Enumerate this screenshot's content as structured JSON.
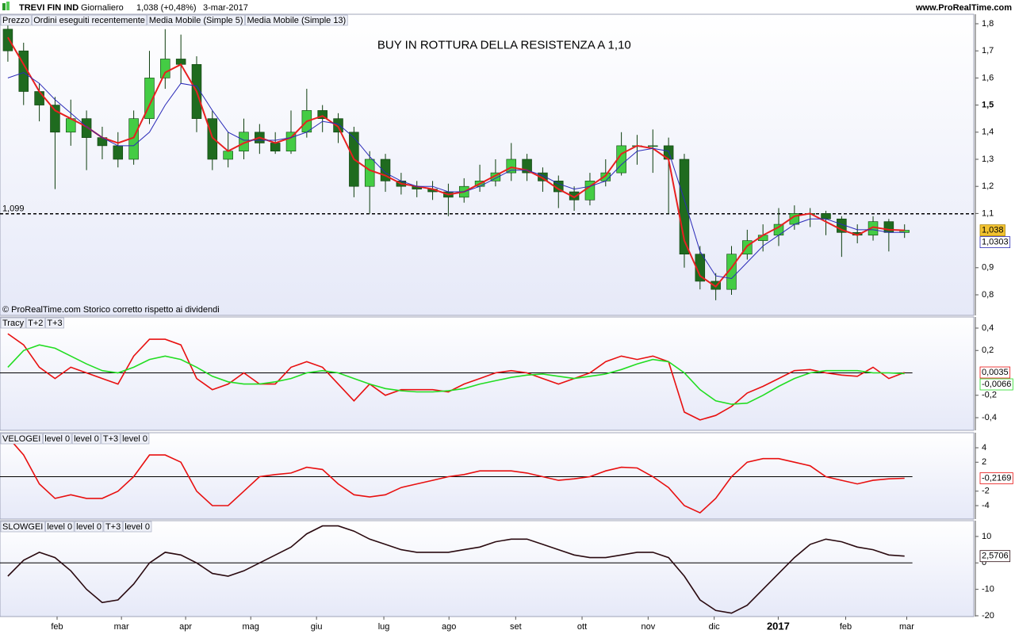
{
  "header": {
    "symbol": "TREVI FIN IND",
    "period": "Giornaliero",
    "quote": "1,038 (+0,48%)",
    "date": "3-mar-2017",
    "site": "www.ProRealTime.com"
  },
  "chart_data": [
    {
      "type": "candlestick",
      "legend": [
        "Prezzo",
        "Ordini eseguiti recentemente"
      ],
      "annotation": "BUY IN ROTTURA DELLA RESISTENZA A 1,10",
      "note": "© ProRealTime.com  Storico corretto rispetto ai dividendi",
      "xlim": [
        -0.5,
        61.4
      ],
      "ylim": [
        0.724,
        1.835
      ],
      "yticks": [
        {
          "value": 0.8,
          "label": "0,8"
        },
        {
          "value": 0.9,
          "label": "0,9"
        },
        {
          "value": 1.1,
          "label": "1,1"
        },
        {
          "value": 1.2,
          "label": "1,2"
        },
        {
          "value": 1.3,
          "label": "1,3"
        },
        {
          "value": 1.4,
          "label": "1,4"
        },
        {
          "value": 1.5,
          "label": "1,5",
          "bold": true
        },
        {
          "value": 1.6,
          "label": "1,6"
        },
        {
          "value": 1.7,
          "label": "1,7"
        },
        {
          "value": 1.8,
          "label": "1,8"
        }
      ],
      "resistance": {
        "value": 1.099,
        "label": "1,099"
      },
      "up_color": "#44cc44",
      "down_color": "#1f6b1f",
      "open": [
        1.78,
        1.7,
        1.55,
        1.5,
        1.4,
        1.45,
        1.38,
        1.35,
        1.3,
        1.45,
        1.6,
        1.67,
        1.65,
        1.45,
        1.3,
        1.33,
        1.4,
        1.36,
        1.33,
        1.4,
        1.48,
        1.45,
        1.4,
        1.2,
        1.3,
        1.22,
        1.2,
        1.19,
        1.18,
        1.16,
        1.2,
        1.22,
        1.25,
        1.3,
        1.25,
        1.22,
        1.18,
        1.15,
        1.22,
        1.25,
        1.35,
        1.35,
        1.35,
        1.3,
        0.95,
        0.85,
        0.82,
        0.95,
        1.0,
        1.02,
        1.06,
        1.1,
        1.1,
        1.08,
        1.03,
        1.02,
        1.07,
        1.03
      ],
      "high": [
        1.82,
        1.73,
        1.58,
        1.53,
        1.52,
        1.48,
        1.42,
        1.4,
        1.48,
        1.7,
        1.78,
        1.76,
        1.68,
        1.48,
        1.4,
        1.45,
        1.43,
        1.4,
        1.48,
        1.56,
        1.5,
        1.47,
        1.42,
        1.33,
        1.32,
        1.25,
        1.22,
        1.22,
        1.21,
        1.23,
        1.28,
        1.3,
        1.36,
        1.32,
        1.27,
        1.24,
        1.2,
        1.25,
        1.3,
        1.4,
        1.39,
        1.41,
        1.38,
        1.32,
        0.98,
        0.88,
        0.98,
        1.04,
        1.06,
        1.12,
        1.13,
        1.12,
        1.11,
        1.09,
        1.06,
        1.09,
        1.08,
        1.06
      ],
      "low": [
        1.66,
        1.5,
        1.44,
        1.19,
        1.35,
        1.26,
        1.3,
        1.27,
        1.28,
        1.43,
        1.56,
        1.58,
        1.4,
        1.26,
        1.27,
        1.3,
        1.32,
        1.32,
        1.32,
        1.38,
        1.4,
        1.36,
        1.16,
        1.1,
        1.18,
        1.17,
        1.16,
        1.15,
        1.09,
        1.14,
        1.18,
        1.2,
        1.22,
        1.22,
        1.18,
        1.12,
        1.11,
        1.13,
        1.2,
        1.24,
        1.28,
        1.25,
        1.1,
        0.9,
        0.82,
        0.78,
        0.8,
        0.93,
        0.96,
        0.98,
        1.04,
        1.05,
        1.02,
        0.94,
        0.99,
        1.0,
        0.96,
        1.01
      ],
      "close": [
        1.7,
        1.55,
        1.5,
        1.4,
        1.45,
        1.38,
        1.35,
        1.3,
        1.45,
        1.6,
        1.67,
        1.65,
        1.45,
        1.3,
        1.33,
        1.4,
        1.36,
        1.33,
        1.4,
        1.48,
        1.45,
        1.4,
        1.2,
        1.3,
        1.22,
        1.2,
        1.19,
        1.18,
        1.16,
        1.2,
        1.22,
        1.25,
        1.3,
        1.25,
        1.22,
        1.18,
        1.15,
        1.22,
        1.25,
        1.35,
        1.35,
        1.35,
        1.3,
        0.95,
        0.85,
        0.82,
        0.95,
        1.0,
        1.02,
        1.06,
        1.1,
        1.1,
        1.08,
        1.03,
        1.02,
        1.07,
        1.03,
        1.038
      ],
      "close_label": "1,038",
      "close_label_color": "#f2c230",
      "series": [
        {
          "name": "Media Mobile (Simple 5)",
          "color": "#e82020",
          "values": [
            1.75,
            1.65,
            1.55,
            1.48,
            1.45,
            1.42,
            1.38,
            1.36,
            1.38,
            1.5,
            1.62,
            1.65,
            1.55,
            1.38,
            1.33,
            1.36,
            1.38,
            1.36,
            1.38,
            1.44,
            1.46,
            1.42,
            1.3,
            1.26,
            1.24,
            1.21,
            1.2,
            1.19,
            1.17,
            1.18,
            1.21,
            1.24,
            1.27,
            1.26,
            1.23,
            1.19,
            1.16,
            1.2,
            1.24,
            1.32,
            1.35,
            1.34,
            1.3,
            1.0,
            0.87,
            0.83,
            0.9,
            0.98,
            1.02,
            1.05,
            1.09,
            1.1,
            1.07,
            1.04,
            1.02,
            1.05,
            1.04,
            1.038
          ]
        },
        {
          "name": "Media Mobile (Simple 13)",
          "color": "#2a2ab8",
          "last_label": "1,0303",
          "values": [
            1.6,
            1.62,
            1.58,
            1.52,
            1.47,
            1.42,
            1.38,
            1.35,
            1.35,
            1.4,
            1.5,
            1.58,
            1.57,
            1.48,
            1.4,
            1.37,
            1.37,
            1.37,
            1.38,
            1.4,
            1.44,
            1.43,
            1.38,
            1.31,
            1.25,
            1.22,
            1.2,
            1.2,
            1.18,
            1.18,
            1.2,
            1.23,
            1.26,
            1.26,
            1.24,
            1.21,
            1.19,
            1.2,
            1.22,
            1.28,
            1.33,
            1.34,
            1.33,
            1.15,
            0.96,
            0.87,
            0.86,
            0.92,
            0.98,
            1.02,
            1.06,
            1.08,
            1.08,
            1.06,
            1.04,
            1.04,
            1.03,
            1.0303
          ]
        }
      ]
    },
    {
      "type": "line",
      "xlim": [
        -0.5,
        61.4
      ],
      "ylim": [
        -0.513,
        0.499
      ],
      "yticks": [
        {
          "value": -0.4,
          "label": "-0,4"
        },
        {
          "value": -0.2,
          "label": "-0,2"
        },
        {
          "value": 0.2,
          "label": "0,2"
        },
        {
          "value": 0.4,
          "label": "0,4"
        }
      ],
      "level": 0,
      "legend_extra": [
        "T+3"
      ],
      "series": [
        {
          "name": "Tracy",
          "color": "#e81010",
          "last_label": "0,0035",
          "values": [
            0.35,
            0.25,
            0.05,
            -0.05,
            0.05,
            0.0,
            -0.05,
            -0.1,
            0.15,
            0.3,
            0.3,
            0.25,
            -0.05,
            -0.15,
            -0.1,
            0.0,
            -0.1,
            -0.1,
            0.05,
            0.1,
            0.05,
            -0.1,
            -0.25,
            -0.1,
            -0.2,
            -0.15,
            -0.15,
            -0.15,
            -0.17,
            -0.1,
            -0.05,
            0.0,
            0.02,
            0.0,
            -0.05,
            -0.1,
            -0.05,
            0.0,
            0.1,
            0.15,
            0.12,
            0.15,
            0.1,
            -0.35,
            -0.42,
            -0.38,
            -0.3,
            -0.18,
            -0.12,
            -0.05,
            0.02,
            0.03,
            0.0,
            -0.02,
            -0.03,
            0.05,
            -0.05,
            0.0035
          ]
        },
        {
          "name": "T+2",
          "color": "#22dd22",
          "last_label": "-0,0066",
          "values": [
            0.05,
            0.2,
            0.25,
            0.22,
            0.15,
            0.08,
            0.02,
            0.0,
            0.05,
            0.12,
            0.15,
            0.12,
            0.05,
            -0.03,
            -0.08,
            -0.1,
            -0.1,
            -0.08,
            -0.05,
            0.0,
            0.02,
            0.0,
            -0.05,
            -0.1,
            -0.14,
            -0.16,
            -0.17,
            -0.17,
            -0.16,
            -0.14,
            -0.1,
            -0.07,
            -0.04,
            -0.02,
            -0.01,
            -0.03,
            -0.05,
            -0.03,
            -0.01,
            0.03,
            0.08,
            0.12,
            0.1,
            0.0,
            -0.15,
            -0.25,
            -0.28,
            -0.27,
            -0.2,
            -0.12,
            -0.05,
            0.0,
            0.02,
            0.02,
            0.02,
            0.0,
            0.0,
            -0.0066
          ]
        }
      ]
    },
    {
      "type": "line",
      "xlim": [
        -0.5,
        61.4
      ],
      "ylim": [
        -5.86,
        6.08
      ],
      "yticks": [
        -4,
        -2,
        2,
        4
      ],
      "level": 0,
      "legend_extra": [
        "level 0",
        "level 0",
        "T+3",
        "level 0"
      ],
      "series": [
        {
          "name": "VELOGEI",
          "color": "#e81010",
          "last_label": "-0,2169",
          "values": [
            5.5,
            3,
            -1,
            -3,
            -2.5,
            -3,
            -3,
            -2,
            0,
            3,
            3,
            2,
            -2,
            -4,
            -4,
            -2,
            0,
            0.3,
            0.5,
            1.3,
            1,
            -1,
            -2.5,
            -2.8,
            -2.5,
            -1.5,
            -1,
            -0.5,
            0,
            0.3,
            0.8,
            0.8,
            0.8,
            0.5,
            0,
            -0.5,
            -0.3,
            0,
            0.8,
            1.3,
            1.2,
            0,
            -1.5,
            -4,
            -5,
            -3,
            0,
            2,
            2.5,
            2.5,
            2,
            1.5,
            0,
            -0.5,
            -1,
            -0.5,
            -0.3,
            -0.2169
          ]
        }
      ]
    },
    {
      "type": "line",
      "xlim": [
        -0.5,
        61.4
      ],
      "ylim": [
        -20.3,
        15.97
      ],
      "yticks": [
        -20,
        -10,
        0,
        10
      ],
      "level": 0,
      "legend_extra": [
        "level 0",
        "level 0",
        "T+3",
        "level 0"
      ],
      "xticks": [
        {
          "value": 3.13,
          "label": "feb"
        },
        {
          "value": 7.22,
          "label": "mar"
        },
        {
          "value": 11.3,
          "label": "apr"
        },
        {
          "value": 15.44,
          "label": "mag"
        },
        {
          "value": 19.62,
          "label": "giu"
        },
        {
          "value": 23.9,
          "label": "lug"
        },
        {
          "value": 28.04,
          "label": "ago"
        },
        {
          "value": 32.28,
          "label": "set"
        },
        {
          "value": 36.5,
          "label": "ott"
        },
        {
          "value": 40.7,
          "label": "nov"
        },
        {
          "value": 44.9,
          "label": "dic"
        },
        {
          "value": 48.97,
          "label": "2017",
          "bold": true
        },
        {
          "value": 53.26,
          "label": "feb"
        },
        {
          "value": 57.14,
          "label": "mar"
        }
      ],
      "series": [
        {
          "name": "SLOWGEI",
          "color": "#2a0a10",
          "last_label": "2,5706",
          "values": [
            -5,
            1,
            4,
            2,
            -3,
            -10,
            -15,
            -14,
            -8,
            0,
            4,
            3,
            0,
            -4,
            -5,
            -3,
            0,
            3,
            6,
            11,
            14,
            14,
            12,
            9,
            7,
            5,
            4,
            4,
            4,
            5,
            6,
            8,
            9,
            9,
            7,
            5,
            3,
            2,
            2,
            3,
            4,
            4,
            2,
            -5,
            -14,
            -18,
            -19,
            -16,
            -10,
            -4,
            2,
            7,
            9,
            8,
            6,
            5,
            3,
            2.5706
          ]
        }
      ]
    }
  ]
}
